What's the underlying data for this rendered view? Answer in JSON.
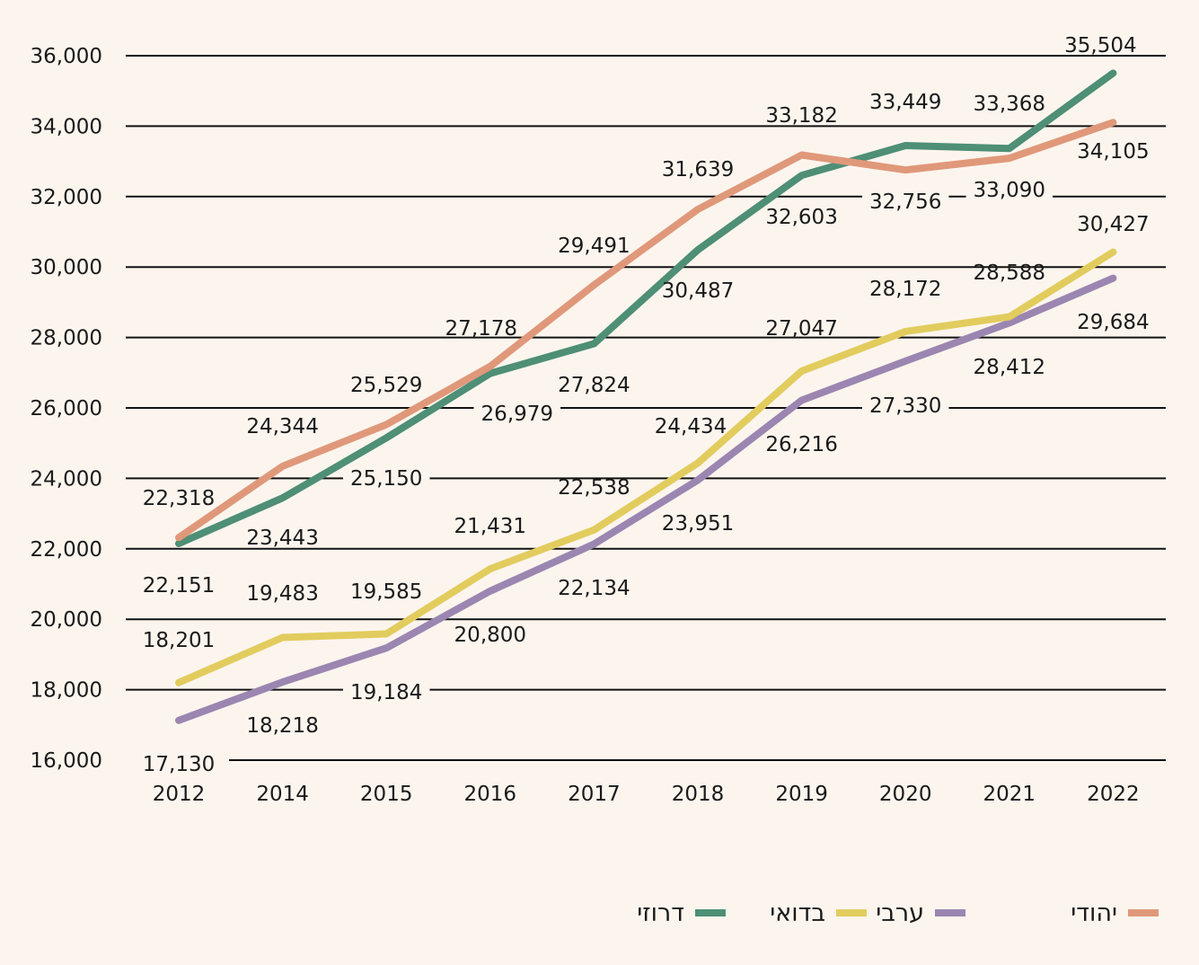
{
  "chart_data": {
    "type": "line",
    "categories": [
      "2012",
      "2014",
      "2015",
      "2016",
      "2017",
      "2018",
      "2019",
      "2020",
      "2021",
      "2022"
    ],
    "ylim": [
      16000,
      36000
    ],
    "yticks": [
      "16,000",
      "18,000",
      "20,000",
      "22,000",
      "24,000",
      "26,000",
      "28,000",
      "30,000",
      "32,000",
      "34,000",
      "36,000"
    ],
    "grid": true,
    "legend_position": "bottom",
    "series": [
      {
        "name": "יהודי",
        "color": "#e0987a",
        "values": [
          22318,
          24344,
          25529,
          27178,
          29491,
          31639,
          33182,
          32756,
          33090,
          34105
        ],
        "labels": [
          "22,318",
          "24,344",
          "25,529",
          "27,178",
          "29,491",
          "31,639",
          "33,182",
          "32,756",
          "33,090",
          "34,105"
        ]
      },
      {
        "name": "ערבי",
        "color": "#9b86b1",
        "values": [
          17130,
          18218,
          19184,
          20800,
          22134,
          23951,
          26216,
          27330,
          28412,
          29684
        ],
        "labels": [
          "17,130",
          "18,218",
          "19,184",
          "20,800",
          "22,134",
          "23,951",
          "26,216",
          "27,330",
          "28,412",
          "29,684"
        ]
      },
      {
        "name": "בדואי",
        "color": "#e2cc5e",
        "values": [
          18201,
          19483,
          19585,
          21431,
          22538,
          24434,
          27047,
          28172,
          28588,
          30427
        ],
        "labels": [
          "18,201",
          "19,483",
          "19,585",
          "21,431",
          "22,538",
          "24,434",
          "27,047",
          "28,172",
          "28,588",
          "30,427"
        ]
      },
      {
        "name": "דרוזי",
        "color": "#4e8f76",
        "values": [
          22151,
          23443,
          25150,
          26979,
          27824,
          30487,
          32603,
          33449,
          33368,
          35504
        ],
        "labels": [
          "22,151",
          "23,443",
          "25,150",
          "26,979",
          "27,824",
          "30,487",
          "32,603",
          "33,449",
          "33,368",
          "35,504"
        ]
      }
    ]
  }
}
